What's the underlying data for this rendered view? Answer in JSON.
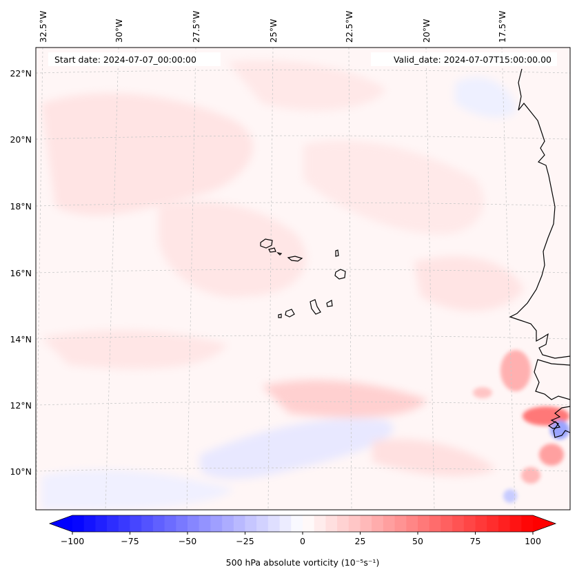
{
  "map": {
    "start_date_label": "Start date: 2024-07-07_00:00:00",
    "valid_date_label": "Valid_date: 2024-07-07T15:00:00.00",
    "lon_labels": [
      "32.5°W",
      "30°W",
      "27.5°W",
      "25°W",
      "22.5°W",
      "20°W",
      "17.5°W"
    ],
    "lat_labels": [
      "22°N",
      "20°N",
      "18°N",
      "16°N",
      "14°N",
      "12°N",
      "10°N"
    ],
    "variable": "500 hPa absolute vorticity",
    "units_label": "(10⁻⁵s⁻¹)"
  },
  "colorbar": {
    "tick_labels": [
      "−100",
      "−75",
      "−50",
      "−25",
      "0",
      "25",
      "50",
      "75",
      "100"
    ],
    "min": -100,
    "max": 100,
    "levels": 40,
    "label": "500 hPa absolute vorticity (10⁻⁵s⁻¹)",
    "neg_color": "#0000ff",
    "pos_color": "#ff0000"
  },
  "colors": {
    "coast": "#000000",
    "grid": "#c8c8c8",
    "background_field": "#fff3f3"
  }
}
